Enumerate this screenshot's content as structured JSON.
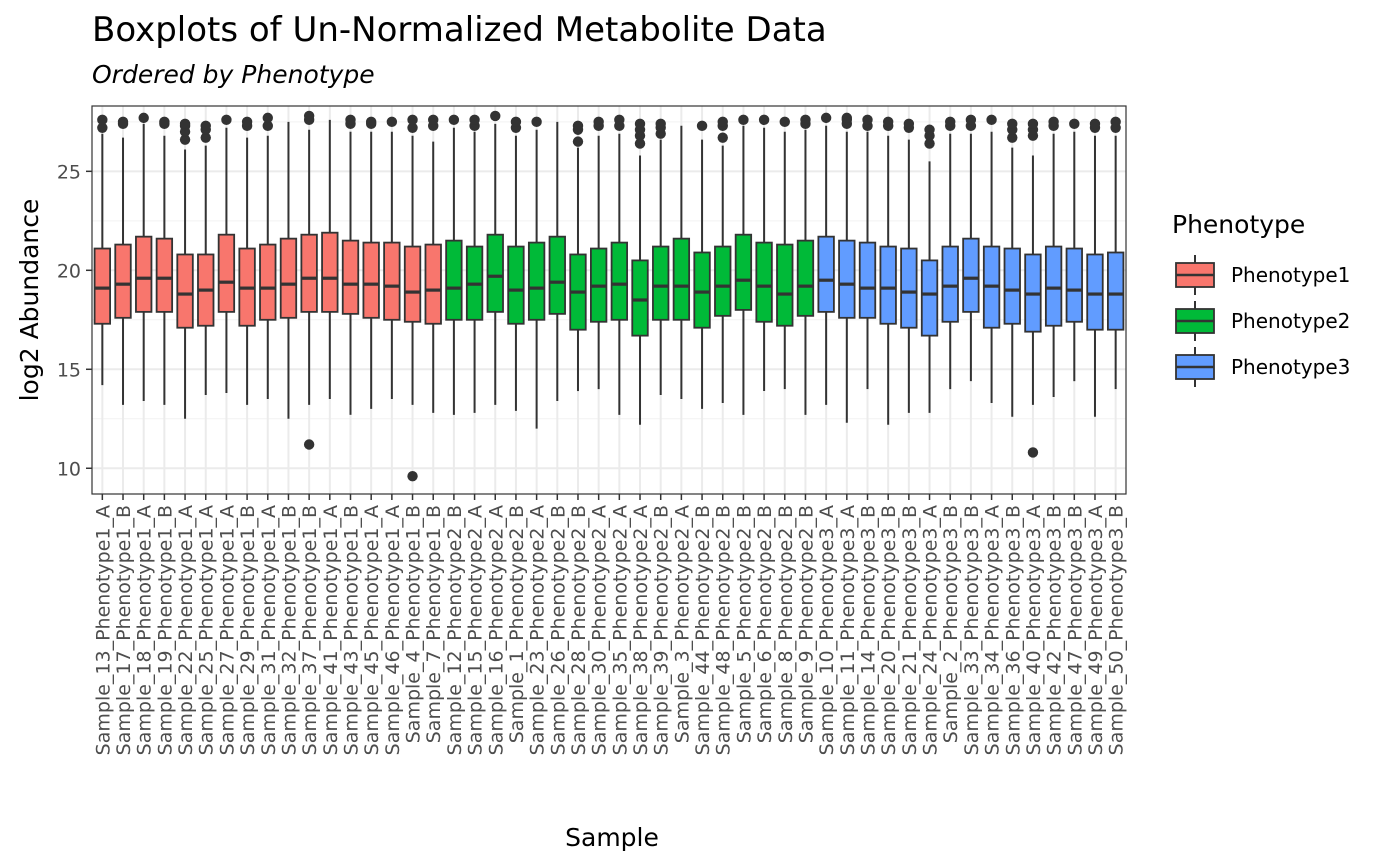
{
  "chart_data": {
    "type": "boxplot",
    "title": "Boxplots of Un-Normalized Metabolite Data",
    "subtitle": "Ordered by  Phenotype",
    "xlabel": "Sample",
    "ylabel": "log2 Abundance",
    "ylim": [
      8.7,
      28.3
    ],
    "yticks": [
      10,
      15,
      20,
      25
    ],
    "grid": true,
    "legend": {
      "title": "Phenotype",
      "placement": "right",
      "entries": [
        {
          "name": "Phenotype1",
          "color": "#F8766D"
        },
        {
          "name": "Phenotype2",
          "color": "#00BA38"
        },
        {
          "name": "Phenotype3",
          "color": "#619CFF"
        }
      ]
    },
    "categories": [
      "Sample_13_Phenotype1_A",
      "Sample_17_Phenotype1_B",
      "Sample_18_Phenotype1_A",
      "Sample_19_Phenotype1_B",
      "Sample_22_Phenotype1_A",
      "Sample_25_Phenotype1_A",
      "Sample_27_Phenotype1_A",
      "Sample_29_Phenotype1_B",
      "Sample_31_Phenotype1_A",
      "Sample_32_Phenotype1_B",
      "Sample_37_Phenotype1_B",
      "Sample_41_Phenotype1_A",
      "Sample_43_Phenotype1_B",
      "Sample_45_Phenotype1_A",
      "Sample_46_Phenotype1_A",
      "Sample_4_Phenotype1_B",
      "Sample_7_Phenotype1_B",
      "Sample_12_Phenotype2_B",
      "Sample_15_Phenotype2_A",
      "Sample_16_Phenotype2_A",
      "Sample_1_Phenotype2_B",
      "Sample_23_Phenotype2_A",
      "Sample_26_Phenotype2_B",
      "Sample_28_Phenotype2_B",
      "Sample_30_Phenotype2_A",
      "Sample_35_Phenotype2_A",
      "Sample_38_Phenotype2_A",
      "Sample_39_Phenotype2_B",
      "Sample_3_Phenotype2_A",
      "Sample_44_Phenotype2_B",
      "Sample_48_Phenotype2_B",
      "Sample_5_Phenotype2_B",
      "Sample_6_Phenotype2_B",
      "Sample_8_Phenotype2_B",
      "Sample_9_Phenotype2_B",
      "Sample_10_Phenotype3_A",
      "Sample_11_Phenotype3_A",
      "Sample_14_Phenotype3_B",
      "Sample_20_Phenotype3_B",
      "Sample_21_Phenotype3_B",
      "Sample_24_Phenotype3_A",
      "Sample_2_Phenotype3_B",
      "Sample_33_Phenotype3_B",
      "Sample_34_Phenotype3_A",
      "Sample_36_Phenotype3_B",
      "Sample_40_Phenotype3_A",
      "Sample_42_Phenotype3_B",
      "Sample_47_Phenotype3_B",
      "Sample_49_Phenotype3_A",
      "Sample_50_Phenotype3_B"
    ],
    "groups": [
      "Phenotype1",
      "Phenotype1",
      "Phenotype1",
      "Phenotype1",
      "Phenotype1",
      "Phenotype1",
      "Phenotype1",
      "Phenotype1",
      "Phenotype1",
      "Phenotype1",
      "Phenotype1",
      "Phenotype1",
      "Phenotype1",
      "Phenotype1",
      "Phenotype1",
      "Phenotype1",
      "Phenotype1",
      "Phenotype2",
      "Phenotype2",
      "Phenotype2",
      "Phenotype2",
      "Phenotype2",
      "Phenotype2",
      "Phenotype2",
      "Phenotype2",
      "Phenotype2",
      "Phenotype2",
      "Phenotype2",
      "Phenotype2",
      "Phenotype2",
      "Phenotype2",
      "Phenotype2",
      "Phenotype2",
      "Phenotype2",
      "Phenotype2",
      "Phenotype3",
      "Phenotype3",
      "Phenotype3",
      "Phenotype3",
      "Phenotype3",
      "Phenotype3",
      "Phenotype3",
      "Phenotype3",
      "Phenotype3",
      "Phenotype3",
      "Phenotype3",
      "Phenotype3",
      "Phenotype3",
      "Phenotype3",
      "Phenotype3"
    ],
    "boxes": [
      {
        "low": 14.2,
        "q1": 17.3,
        "median": 19.1,
        "q3": 21.1,
        "high": 26.9,
        "outliers": [
          27.2,
          27.6
        ]
      },
      {
        "low": 13.2,
        "q1": 17.6,
        "median": 19.3,
        "q3": 21.3,
        "high": 26.7,
        "outliers": [
          27.4,
          27.5
        ]
      },
      {
        "low": 13.4,
        "q1": 17.9,
        "median": 19.6,
        "q3": 21.7,
        "high": 27.4,
        "outliers": [
          27.7
        ]
      },
      {
        "low": 13.2,
        "q1": 17.9,
        "median": 19.6,
        "q3": 21.6,
        "high": 26.8,
        "outliers": [
          27.4,
          27.5
        ]
      },
      {
        "low": 12.5,
        "q1": 17.1,
        "median": 18.8,
        "q3": 20.8,
        "high": 26.1,
        "outliers": [
          26.6,
          27.0,
          27.3,
          27.4
        ]
      },
      {
        "low": 13.7,
        "q1": 17.2,
        "median": 19.0,
        "q3": 20.8,
        "high": 26.3,
        "outliers": [
          26.7,
          27.1,
          27.3
        ]
      },
      {
        "low": 13.8,
        "q1": 17.9,
        "median": 19.4,
        "q3": 21.8,
        "high": 27.2,
        "outliers": [
          27.6
        ]
      },
      {
        "low": 13.2,
        "q1": 17.2,
        "median": 19.1,
        "q3": 21.1,
        "high": 26.7,
        "outliers": [
          27.3,
          27.5
        ]
      },
      {
        "low": 13.5,
        "q1": 17.5,
        "median": 19.1,
        "q3": 21.3,
        "high": 26.8,
        "outliers": [
          27.3,
          27.7
        ]
      },
      {
        "low": 12.5,
        "q1": 17.6,
        "median": 19.3,
        "q3": 21.6,
        "high": 27.5,
        "outliers": []
      },
      {
        "low": 13.2,
        "q1": 17.9,
        "median": 19.6,
        "q3": 21.8,
        "high": 27.1,
        "outliers": [
          11.2,
          27.6,
          27.8
        ]
      },
      {
        "low": 13.5,
        "q1": 17.9,
        "median": 19.6,
        "q3": 21.9,
        "high": 27.6,
        "outliers": []
      },
      {
        "low": 12.7,
        "q1": 17.8,
        "median": 19.3,
        "q3": 21.5,
        "high": 27.0,
        "outliers": [
          27.4,
          27.6
        ]
      },
      {
        "low": 13.0,
        "q1": 17.6,
        "median": 19.3,
        "q3": 21.4,
        "high": 27.0,
        "outliers": [
          27.4,
          27.5
        ]
      },
      {
        "low": 13.5,
        "q1": 17.5,
        "median": 19.2,
        "q3": 21.4,
        "high": 27.0,
        "outliers": [
          27.5
        ]
      },
      {
        "low": 13.2,
        "q1": 17.4,
        "median": 18.9,
        "q3": 21.2,
        "high": 26.8,
        "outliers": [
          9.6,
          27.2,
          27.6
        ]
      },
      {
        "low": 12.8,
        "q1": 17.3,
        "median": 19.0,
        "q3": 21.3,
        "high": 26.5,
        "outliers": [
          27.3,
          27.6
        ]
      },
      {
        "low": 12.7,
        "q1": 17.5,
        "median": 19.1,
        "q3": 21.5,
        "high": 27.2,
        "outliers": [
          27.6
        ]
      },
      {
        "low": 12.8,
        "q1": 17.5,
        "median": 19.3,
        "q3": 21.2,
        "high": 27.0,
        "outliers": [
          27.3,
          27.6
        ]
      },
      {
        "low": 13.2,
        "q1": 17.9,
        "median": 19.7,
        "q3": 21.8,
        "high": 27.4,
        "outliers": [
          27.8
        ]
      },
      {
        "low": 12.9,
        "q1": 17.3,
        "median": 19.0,
        "q3": 21.2,
        "high": 26.8,
        "outliers": [
          27.2,
          27.5
        ]
      },
      {
        "low": 12.0,
        "q1": 17.5,
        "median": 19.1,
        "q3": 21.4,
        "high": 27.1,
        "outliers": [
          27.5
        ]
      },
      {
        "low": 13.4,
        "q1": 17.8,
        "median": 19.4,
        "q3": 21.7,
        "high": 27.5,
        "outliers": []
      },
      {
        "low": 13.9,
        "q1": 17.0,
        "median": 18.9,
        "q3": 20.8,
        "high": 26.2,
        "outliers": [
          26.5,
          27.1,
          27.3
        ]
      },
      {
        "low": 14.0,
        "q1": 17.4,
        "median": 19.2,
        "q3": 21.1,
        "high": 26.8,
        "outliers": [
          27.3,
          27.5
        ]
      },
      {
        "low": 12.7,
        "q1": 17.5,
        "median": 19.3,
        "q3": 21.4,
        "high": 26.9,
        "outliers": [
          27.3,
          27.6
        ]
      },
      {
        "low": 12.2,
        "q1": 16.7,
        "median": 18.5,
        "q3": 20.5,
        "high": 25.8,
        "outliers": [
          26.4,
          26.8,
          27.1,
          27.4
        ]
      },
      {
        "low": 13.7,
        "q1": 17.5,
        "median": 19.2,
        "q3": 21.2,
        "high": 26.6,
        "outliers": [
          26.9,
          27.2,
          27.4
        ]
      },
      {
        "low": 13.5,
        "q1": 17.5,
        "median": 19.2,
        "q3": 21.6,
        "high": 27.3,
        "outliers": []
      },
      {
        "low": 13.0,
        "q1": 17.1,
        "median": 18.9,
        "q3": 20.9,
        "high": 26.6,
        "outliers": [
          27.3
        ]
      },
      {
        "low": 13.3,
        "q1": 17.7,
        "median": 19.2,
        "q3": 21.2,
        "high": 26.3,
        "outliers": [
          26.7,
          27.3,
          27.5
        ]
      },
      {
        "low": 12.7,
        "q1": 18.0,
        "median": 19.5,
        "q3": 21.8,
        "high": 27.3,
        "outliers": [
          27.6
        ]
      },
      {
        "low": 13.9,
        "q1": 17.4,
        "median": 19.2,
        "q3": 21.4,
        "high": 27.2,
        "outliers": [
          27.6
        ]
      },
      {
        "low": 14.0,
        "q1": 17.2,
        "median": 18.8,
        "q3": 21.3,
        "high": 27.0,
        "outliers": [
          27.5
        ]
      },
      {
        "low": 12.7,
        "q1": 17.7,
        "median": 19.2,
        "q3": 21.5,
        "high": 27.1,
        "outliers": [
          27.4,
          27.6
        ]
      },
      {
        "low": 13.2,
        "q1": 17.9,
        "median": 19.5,
        "q3": 21.7,
        "high": 27.3,
        "outliers": [
          27.7
        ]
      },
      {
        "low": 12.3,
        "q1": 17.6,
        "median": 19.3,
        "q3": 21.5,
        "high": 27.0,
        "outliers": [
          27.4,
          27.6,
          27.7
        ]
      },
      {
        "low": 14.0,
        "q1": 17.6,
        "median": 19.1,
        "q3": 21.4,
        "high": 27.0,
        "outliers": [
          27.3,
          27.6
        ]
      },
      {
        "low": 12.2,
        "q1": 17.3,
        "median": 19.1,
        "q3": 21.2,
        "high": 26.8,
        "outliers": [
          27.3,
          27.5
        ]
      },
      {
        "low": 12.8,
        "q1": 17.1,
        "median": 18.9,
        "q3": 21.1,
        "high": 26.6,
        "outliers": [
          27.2,
          27.4
        ]
      },
      {
        "low": 12.8,
        "q1": 16.7,
        "median": 18.8,
        "q3": 20.5,
        "high": 25.5,
        "outliers": [
          26.4,
          26.8,
          27.1
        ]
      },
      {
        "low": 14.0,
        "q1": 17.4,
        "median": 19.2,
        "q3": 21.2,
        "high": 26.9,
        "outliers": [
          27.3,
          27.5
        ]
      },
      {
        "low": 14.4,
        "q1": 17.9,
        "median": 19.6,
        "q3": 21.6,
        "high": 26.9,
        "outliers": [
          27.3,
          27.6
        ]
      },
      {
        "low": 13.3,
        "q1": 17.1,
        "median": 19.2,
        "q3": 21.2,
        "high": 27.0,
        "outliers": [
          27.6
        ]
      },
      {
        "low": 12.6,
        "q1": 17.3,
        "median": 19.0,
        "q3": 21.1,
        "high": 26.2,
        "outliers": [
          26.7,
          27.1,
          27.4
        ]
      },
      {
        "low": 13.2,
        "q1": 16.9,
        "median": 18.8,
        "q3": 20.8,
        "high": 25.8,
        "outliers": [
          10.8,
          26.8,
          27.1,
          27.4
        ]
      },
      {
        "low": 13.6,
        "q1": 17.2,
        "median": 19.1,
        "q3": 21.2,
        "high": 26.9,
        "outliers": [
          27.3,
          27.5
        ]
      },
      {
        "low": 14.4,
        "q1": 17.4,
        "median": 19.0,
        "q3": 21.1,
        "high": 27.0,
        "outliers": [
          27.4
        ]
      },
      {
        "low": 12.6,
        "q1": 17.0,
        "median": 18.8,
        "q3": 20.8,
        "high": 26.8,
        "outliers": [
          27.2,
          27.4
        ]
      },
      {
        "low": 14.0,
        "q1": 17.0,
        "median": 18.8,
        "q3": 20.9,
        "high": 26.8,
        "outliers": [
          27.2,
          27.5
        ]
      }
    ]
  }
}
